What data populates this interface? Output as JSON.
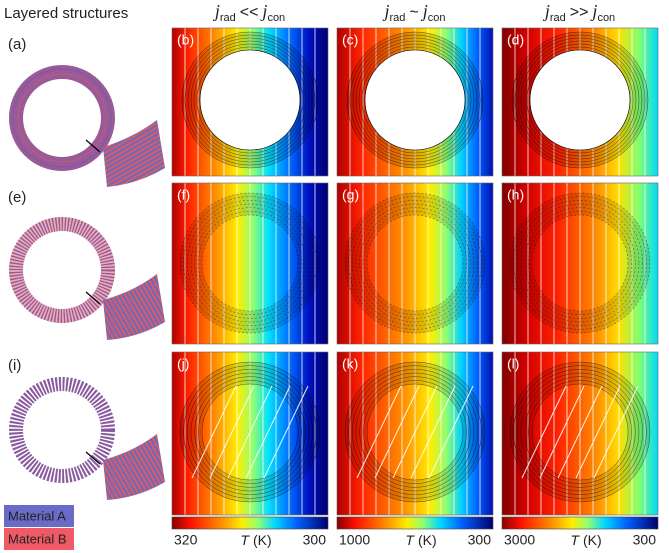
{
  "title": "Layered structures",
  "row_labels": [
    "(a)",
    "(e)",
    "(i)"
  ],
  "column_headers": [
    {
      "var": "j",
      "sub_left": "rad",
      "relation": "<<",
      "sub_right": "con"
    },
    {
      "var": "j",
      "sub_left": "rad",
      "relation": "~",
      "sub_right": "con"
    },
    {
      "var": "j",
      "sub_left": "rad",
      "relation": ">>",
      "sub_right": "con"
    }
  ],
  "panel_labels": [
    [
      "(b)",
      "(c)",
      "(d)"
    ],
    [
      "(f)",
      "(g)",
      "(h)"
    ],
    [
      "(j)",
      "(k)",
      "(l)"
    ]
  ],
  "colorbars": [
    {
      "hot": 320,
      "symbol": "T",
      "unit": "(K)",
      "cold": 300
    },
    {
      "hot": 1000,
      "symbol": "T",
      "unit": "(K)",
      "cold": 300
    },
    {
      "hot": 3000,
      "symbol": "T",
      "unit": "(K)",
      "cold": 300
    }
  ],
  "legend": [
    "Material A",
    "Material B"
  ]
}
